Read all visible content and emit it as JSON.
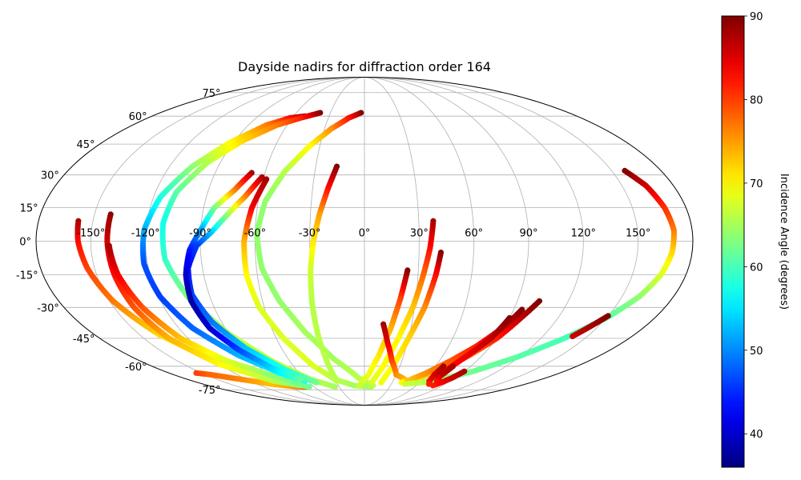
{
  "chart_data": {
    "type": "scatter",
    "projection": "mollweide",
    "title": "Dayside nadirs for diffraction order 164",
    "grid": true,
    "longitude_ticks": [
      -150,
      -120,
      -90,
      -60,
      -30,
      0,
      30,
      60,
      90,
      120,
      150
    ],
    "longitude_tick_labels": [
      "-150°",
      "-120°",
      "-90°",
      "-60°",
      "-30°",
      "0°",
      "30°",
      "60°",
      "90°",
      "120°",
      "150°"
    ],
    "latitude_ticks": [
      -75,
      -60,
      -45,
      -30,
      -15,
      0,
      15,
      30,
      45,
      60,
      75
    ],
    "latitude_tick_labels": [
      "-75°",
      "-60°",
      "-45°",
      "-30°",
      "-15°",
      "0°",
      "15°",
      "30°",
      "45°",
      "60°",
      "75°"
    ],
    "colorbar": {
      "label": "Incidence Angle (degrees)",
      "colormap": "jet",
      "range": [
        36,
        90
      ],
      "ticks": [
        40,
        50,
        60,
        70,
        80,
        90
      ],
      "tick_labels": [
        "40",
        "50",
        "60",
        "70",
        "80",
        "90"
      ]
    },
    "xlabel": "",
    "ylabel": "",
    "tracks": [
      {
        "points": [
          [
            -155,
            -64,
            80
          ],
          [
            -145,
            -65,
            78
          ],
          [
            -132,
            -67,
            77
          ],
          [
            -118,
            -69,
            75
          ],
          [
            -104,
            -71,
            73
          ],
          [
            -92,
            -72,
            74
          ],
          [
            -78,
            -73,
            76
          ],
          [
            -70,
            -73,
            78
          ]
        ]
      },
      {
        "points": [
          [
            -158,
            9,
            88
          ],
          [
            -157,
            0,
            83
          ],
          [
            -154,
            -12,
            80
          ],
          [
            -148,
            -27,
            77
          ],
          [
            -137,
            -43,
            72
          ],
          [
            -118,
            -58,
            67
          ],
          [
            -93,
            -68,
            64
          ],
          [
            -66,
            -73,
            62
          ]
        ]
      },
      {
        "points": [
          [
            -141,
            12,
            89
          ],
          [
            -141,
            0,
            86
          ],
          [
            -140,
            -15,
            83
          ],
          [
            -138,
            -30,
            79
          ],
          [
            -133,
            -45,
            74
          ],
          [
            -120,
            -59,
            70
          ],
          [
            -95,
            -69,
            66
          ],
          [
            -74,
            -72,
            63
          ]
        ]
      },
      {
        "points": [
          [
            -140,
            -2,
            88
          ],
          [
            -138,
            -15,
            84
          ],
          [
            -133,
            -30,
            79
          ],
          [
            -125,
            -45,
            73
          ],
          [
            -110,
            -57,
            68
          ],
          [
            -90,
            -65,
            64
          ],
          [
            -72,
            -70,
            62
          ]
        ]
      },
      {
        "points": [
          [
            -50,
            60,
            90
          ],
          [
            -62,
            59,
            83
          ],
          [
            -76,
            55,
            77
          ],
          [
            -92,
            46,
            70
          ],
          [
            -106,
            34,
            64
          ],
          [
            -116,
            20,
            58
          ],
          [
            -121,
            5,
            52
          ],
          [
            -122,
            -10,
            47
          ],
          [
            -119,
            -25,
            46
          ],
          [
            -111,
            -40,
            48
          ],
          [
            -96,
            -54,
            52
          ],
          [
            -78,
            -64,
            56
          ],
          [
            -62,
            -69,
            58
          ]
        ]
      },
      {
        "points": [
          [
            -39,
            62,
            90
          ],
          [
            -53,
            59,
            82
          ],
          [
            -68,
            55,
            77
          ],
          [
            -84,
            47,
            72
          ],
          [
            -98,
            36,
            66
          ],
          [
            -108,
            22,
            61
          ],
          [
            -111,
            8,
            57
          ],
          [
            -110,
            -8,
            59
          ],
          [
            -103,
            -25,
            63
          ],
          [
            -90,
            -43,
            66
          ],
          [
            -73,
            -58,
            67
          ],
          [
            -55,
            -68,
            66
          ],
          [
            -35,
            -73,
            65
          ]
        ]
      },
      {
        "points": [
          [
            -61,
            29,
            88
          ],
          [
            -68,
            20,
            77
          ],
          [
            -76,
            12,
            65
          ],
          [
            -84,
            4,
            54
          ],
          [
            -92,
            -2,
            46
          ],
          [
            -98,
            -12,
            43
          ],
          [
            -100,
            -24,
            46
          ],
          [
            -96,
            -37,
            49
          ],
          [
            -86,
            -50,
            53
          ],
          [
            -70,
            -62,
            58
          ],
          [
            -52,
            -70,
            62
          ]
        ]
      },
      {
        "points": [
          [
            -68,
            31,
            88
          ],
          [
            -75,
            23,
            77
          ],
          [
            -84,
            15,
            63
          ],
          [
            -90,
            5,
            52
          ],
          [
            -96,
            -4,
            44
          ],
          [
            -100,
            -15,
            40
          ],
          [
            -102,
            -27,
            38
          ],
          [
            -100,
            -40,
            40
          ],
          [
            -92,
            -51,
            46
          ],
          [
            -80,
            -61,
            54
          ],
          [
            -65,
            -68,
            61
          ]
        ]
      },
      {
        "points": [
          [
            -58,
            28,
            88
          ],
          [
            -63,
            15,
            84
          ],
          [
            -66,
            0,
            74
          ],
          [
            -66,
            -15,
            70
          ],
          [
            -63,
            -30,
            68
          ],
          [
            -55,
            -45,
            68
          ],
          [
            -43,
            -60,
            68
          ],
          [
            -30,
            -68,
            66
          ],
          [
            -12,
            -72,
            65
          ],
          [
            8,
            -73,
            65
          ]
        ]
      },
      {
        "points": [
          [
            -3,
            62,
            90
          ],
          [
            -13,
            59,
            83
          ],
          [
            -25,
            53,
            76
          ],
          [
            -37,
            44,
            70
          ],
          [
            -48,
            32,
            66
          ],
          [
            -56,
            18,
            64
          ],
          [
            -59,
            3,
            64
          ],
          [
            -57,
            -12,
            64
          ],
          [
            -50,
            -27,
            64
          ],
          [
            -39,
            -42,
            65
          ],
          [
            -24,
            -56,
            65
          ],
          [
            -6,
            -67,
            66
          ],
          [
            10,
            -72,
            66
          ]
        ]
      },
      {
        "points": [
          [
            -17,
            34,
            90
          ],
          [
            -21,
            24,
            83
          ],
          [
            -25,
            12,
            75
          ],
          [
            -28,
            0,
            71
          ],
          [
            -30,
            -13,
            67
          ],
          [
            -31,
            -28,
            66
          ],
          [
            -31,
            -44,
            66
          ],
          [
            -30,
            -60,
            66
          ],
          [
            -29,
            -69,
            66
          ]
        ]
      },
      {
        "points": [
          [
            38,
            9,
            88
          ],
          [
            36,
            -3,
            83
          ],
          [
            33,
            -15,
            78
          ],
          [
            29,
            -30,
            73
          ],
          [
            23,
            -45,
            70
          ],
          [
            16,
            -60,
            70
          ],
          [
            8,
            -70,
            68
          ]
        ]
      },
      {
        "points": [
          [
            42,
            -5,
            90
          ],
          [
            40,
            -15,
            83
          ],
          [
            36,
            -30,
            76
          ],
          [
            30,
            -45,
            72
          ],
          [
            24,
            -60,
            70
          ],
          [
            18,
            -70,
            69
          ]
        ]
      },
      {
        "points": [
          [
            24,
            -13,
            90
          ],
          [
            21,
            -26,
            80
          ],
          [
            17,
            -40,
            74
          ],
          [
            11,
            -54,
            71
          ],
          [
            4,
            -65,
            69
          ],
          [
            -6,
            -72,
            67
          ]
        ]
      },
      {
        "points": [
          [
            12,
            -38,
            88
          ],
          [
            16,
            -47,
            85
          ],
          [
            22,
            -57,
            80
          ],
          [
            30,
            -65,
            76
          ],
          [
            45,
            -69,
            73
          ],
          [
            65,
            -70,
            70
          ]
        ]
      },
      {
        "points": [
          [
            103,
            -27,
            90
          ],
          [
            97,
            -35,
            87
          ],
          [
            90,
            -45,
            82
          ],
          [
            80,
            -54,
            78
          ],
          [
            68,
            -62,
            74
          ],
          [
            54,
            -67,
            72
          ],
          [
            40,
            -70,
            70
          ]
        ]
      },
      {
        "points": [
          [
            95,
            -31,
            90
          ],
          [
            89,
            -40,
            86
          ],
          [
            80,
            -49,
            82
          ],
          [
            69,
            -57,
            79
          ],
          [
            57,
            -64,
            76
          ],
          [
            45,
            -69,
            73
          ]
        ]
      },
      {
        "points": [
          [
            90,
            -35,
            90
          ],
          [
            86,
            -45,
            87
          ],
          [
            78,
            -55,
            84
          ],
          [
            70,
            -65,
            82
          ],
          [
            72,
            -71,
            80
          ]
        ]
      },
      {
        "points": [
          [
            158,
            32,
            90
          ],
          [
            164,
            25,
            86
          ],
          [
            168,
            15,
            81
          ],
          [
            170,
            5,
            77
          ],
          [
            169,
            -5,
            72
          ],
          [
            166,
            -15,
            68
          ],
          [
            160,
            -25,
            64
          ],
          [
            150,
            -35,
            61
          ],
          [
            136,
            -45,
            60
          ],
          [
            118,
            -55,
            61
          ],
          [
            98,
            -63,
            62
          ],
          [
            77,
            -68,
            64
          ],
          [
            60,
            -70,
            66
          ],
          [
            45,
            -71,
            67
          ]
        ]
      },
      {
        "points": [
          [
            150,
            -34,
            90
          ],
          [
            145,
            -39,
            88
          ],
          [
            140,
            -44,
            86
          ]
        ]
      },
      {
        "points": [
          [
            67,
            -60,
            88
          ],
          [
            66,
            -65,
            86
          ],
          [
            68,
            -69,
            84
          ],
          [
            72,
            -71,
            82
          ]
        ]
      },
      {
        "points": [
          [
            75,
            -60,
            88
          ],
          [
            73,
            -66,
            86
          ],
          [
            76,
            -69,
            84
          ],
          [
            80,
            -70,
            82
          ]
        ]
      },
      {
        "points": [
          [
            90,
            -63,
            88
          ],
          [
            87,
            -67,
            86
          ],
          [
            83,
            -70,
            84
          ],
          [
            79,
            -72,
            82
          ]
        ]
      }
    ]
  }
}
